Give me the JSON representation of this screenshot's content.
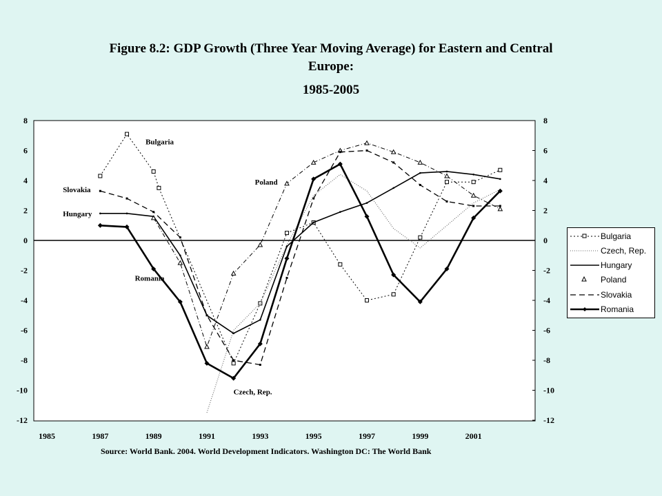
{
  "chart_data": {
    "type": "line",
    "title_lines": [
      "Figure 8.2: GDP Growth (Three Year Moving Average) for Eastern and Central",
      "Europe:",
      "1985-2005"
    ],
    "source": "Source: World Bank. 2004. World Development Indicators. Washington DC: The World Bank",
    "x_ticks": [
      1985,
      1987,
      1989,
      1991,
      1993,
      1995,
      1997,
      1999,
      2001
    ],
    "xlim": [
      1985,
      2003
    ],
    "y_ticks": [
      8,
      6,
      4,
      2,
      0,
      -2,
      -4,
      -6,
      -8,
      -10,
      -12
    ],
    "ylim": [
      -12,
      8
    ],
    "legend_position": "right",
    "series": [
      {
        "name": "Bulgaria",
        "style": "dotted-square",
        "points": [
          [
            1987,
            4.3
          ],
          [
            1988,
            7.1
          ],
          [
            1989,
            4.6
          ],
          [
            1989.2,
            3.5
          ],
          [
            1992,
            -8.2
          ],
          [
            1993,
            -4.2
          ],
          [
            1994,
            0.5
          ],
          [
            1995,
            1.2
          ],
          [
            1996,
            -1.6
          ],
          [
            1997,
            -4.0
          ],
          [
            1998,
            -3.6
          ],
          [
            1999,
            0.2
          ],
          [
            2000,
            3.9
          ],
          [
            2001,
            3.9
          ],
          [
            2002,
            4.7
          ]
        ]
      },
      {
        "name": "Czech, Rep.",
        "style": "dotted",
        "points": [
          [
            1991,
            -11.5
          ],
          [
            1992,
            -6.0
          ],
          [
            1993,
            -4.2
          ],
          [
            1994,
            -0.3
          ],
          [
            1995,
            3.0
          ],
          [
            1996,
            4.4
          ],
          [
            1997,
            3.3
          ],
          [
            1998,
            0.8
          ],
          [
            1999,
            -0.5
          ],
          [
            2000,
            1.0
          ],
          [
            2001,
            2.5
          ],
          [
            2002,
            3.4
          ]
        ]
      },
      {
        "name": "Hungary",
        "style": "solid",
        "points": [
          [
            1987,
            1.8
          ],
          [
            1988,
            1.8
          ],
          [
            1989,
            1.6
          ],
          [
            1990,
            -1.0
          ],
          [
            1991,
            -5.0
          ],
          [
            1992,
            -6.2
          ],
          [
            1993,
            -5.3
          ],
          [
            1994,
            -0.4
          ],
          [
            1995,
            1.2
          ],
          [
            1996,
            1.9
          ],
          [
            1997,
            2.5
          ],
          [
            1998,
            3.5
          ],
          [
            1999,
            4.5
          ],
          [
            2000,
            4.6
          ],
          [
            2001,
            4.4
          ],
          [
            2002,
            4.1
          ]
        ]
      },
      {
        "name": "Poland",
        "style": "dash-dot-triangle",
        "points": [
          [
            1989,
            1.5
          ],
          [
            1990,
            -1.5
          ],
          [
            1991,
            -7.1
          ],
          [
            1992,
            -2.2
          ],
          [
            1993,
            -0.3
          ],
          [
            1994,
            3.8
          ],
          [
            1995,
            5.2
          ],
          [
            1996,
            6.0
          ],
          [
            1997,
            6.5
          ],
          [
            1998,
            5.9
          ],
          [
            1999,
            5.2
          ],
          [
            2000,
            4.3
          ],
          [
            2001,
            3.0
          ],
          [
            2002,
            2.1
          ]
        ]
      },
      {
        "name": "Slovakia",
        "style": "dashed",
        "points": [
          [
            1987,
            3.3
          ],
          [
            1988,
            2.8
          ],
          [
            1989,
            1.9
          ],
          [
            1990,
            0.2
          ],
          [
            1991,
            -5.0
          ],
          [
            1992,
            -8.0
          ],
          [
            1993,
            -8.3
          ],
          [
            1994,
            -2.5
          ],
          [
            1995,
            2.8
          ],
          [
            1996,
            5.9
          ],
          [
            1997,
            6.0
          ],
          [
            1998,
            5.2
          ],
          [
            1999,
            3.7
          ],
          [
            2000,
            2.6
          ],
          [
            2001,
            2.3
          ],
          [
            2002,
            2.3
          ]
        ]
      },
      {
        "name": "Romania",
        "style": "solid-bold-diamond",
        "points": [
          [
            1987,
            1.0
          ],
          [
            1988,
            0.9
          ],
          [
            1989,
            -1.9
          ],
          [
            1990,
            -4.1
          ],
          [
            1991,
            -8.2
          ],
          [
            1992,
            -9.2
          ],
          [
            1993,
            -6.9
          ],
          [
            1994,
            -1.2
          ],
          [
            1995,
            4.1
          ],
          [
            1996,
            5.1
          ],
          [
            1997,
            1.6
          ],
          [
            1998,
            -2.3
          ],
          [
            1999,
            -4.1
          ],
          [
            2000,
            -1.9
          ],
          [
            2001,
            1.5
          ],
          [
            2002,
            3.3
          ]
        ]
      }
    ],
    "annotations": [
      {
        "text": "Bulgaria",
        "x": 1988.7,
        "y": 6.6
      },
      {
        "text": "Slovakia",
        "x": 1985.6,
        "y": 3.4
      },
      {
        "text": "Hungary",
        "x": 1985.6,
        "y": 1.8
      },
      {
        "text": "Poland",
        "x": 1992.8,
        "y": 3.9
      },
      {
        "text": "Romania",
        "x": 1988.3,
        "y": -2.5
      },
      {
        "text": "Czech, Rep.",
        "x": 1992.0,
        "y": -10.1
      }
    ]
  }
}
